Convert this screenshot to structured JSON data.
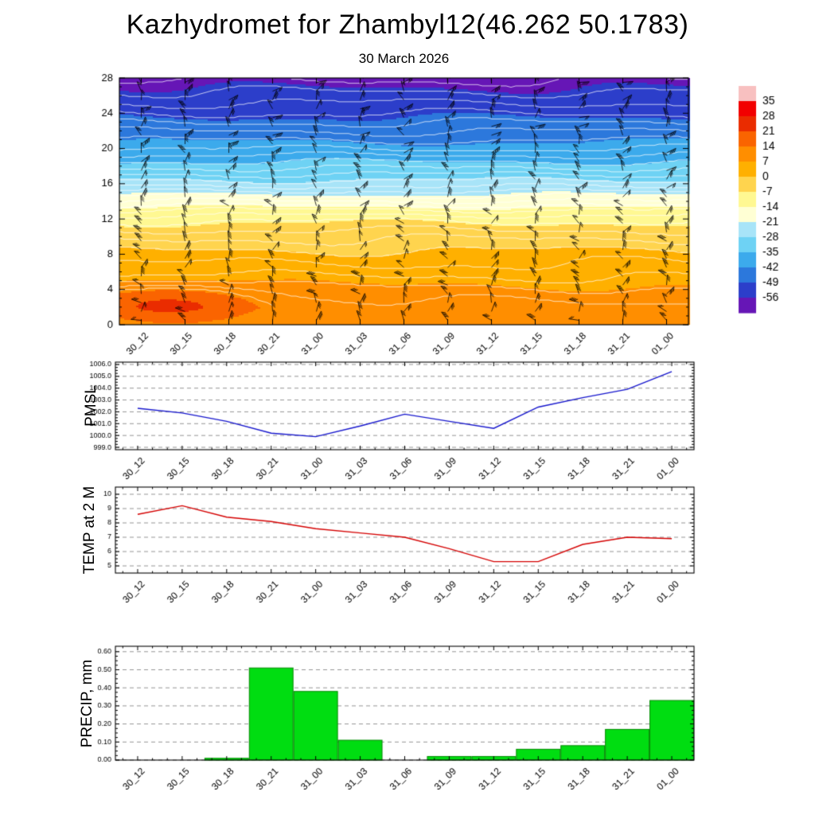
{
  "page": {
    "title": "Kazhydromet for Zhambyl12(46.262 50.1783)",
    "subtitle": "30 March 2026"
  },
  "time_labels": [
    "30_12",
    "30_15",
    "30_18",
    "30_21",
    "31_00",
    "31_03",
    "31_06",
    "31_09",
    "31_12",
    "31_15",
    "31_18",
    "31_21",
    "01_00"
  ],
  "chart_data": [
    {
      "id": "temperature-height-cross-section",
      "type": "heatmap",
      "description": "Temperature (shaded, deg C) height-time cross-section with wind barbs",
      "ylim": [
        0,
        28
      ],
      "yticks": [
        0,
        4,
        8,
        12,
        16,
        20,
        24,
        28
      ],
      "wind_barbs": true,
      "colorbar_ticks": [
        35,
        28,
        21,
        14,
        7,
        0,
        -7,
        -14,
        -21,
        -28,
        -35,
        -42,
        -49,
        -56
      ],
      "colorbar_colors": [
        "#f8c0c0",
        "#f20000",
        "#ea2c00",
        "#fa6400",
        "#ff8e00",
        "#ffb000",
        "#ffd44e",
        "#fff892",
        "#ffffd4",
        "#a8e4f8",
        "#6ed2f4",
        "#3caaec",
        "#2c78dc",
        "#2c3eca",
        "#6616b6"
      ],
      "profile_heights": [
        0,
        2,
        4,
        6,
        8,
        10,
        12,
        13,
        14,
        16,
        18,
        20,
        22,
        24,
        26,
        28
      ],
      "profile_temps_c": [
        9,
        11,
        8,
        4,
        1,
        -3,
        -8,
        -12,
        -17,
        -26,
        -33,
        -40,
        -45,
        -50,
        -54,
        -58
      ],
      "warm_patch": {
        "time_frac": 0.1,
        "height": 2.5,
        "amplitude_c": 12
      }
    },
    {
      "id": "pmsl",
      "type": "line",
      "ylabel": "PMSL",
      "line_color": "#1515cc",
      "ylim": [
        998.8,
        1006.2
      ],
      "yticks": [
        1006,
        1005,
        1004,
        1003,
        1002,
        1001,
        1000,
        999
      ],
      "tick_decimals": 1,
      "values": [
        1002.3,
        1001.9,
        1001.2,
        1000.2,
        999.9,
        1000.8,
        1001.8,
        1001.2,
        1000.6,
        1002.4,
        1003.2,
        1003.9,
        1005.4
      ]
    },
    {
      "id": "temp-2m",
      "type": "line",
      "ylabel": "TEMP at 2 M",
      "line_color": "#d40000",
      "ylim": [
        4.5,
        10.5
      ],
      "yticks": [
        10,
        9,
        8,
        7,
        6,
        5
      ],
      "tick_decimals": 0,
      "values": [
        8.6,
        9.2,
        8.4,
        8.1,
        7.6,
        7.3,
        7.0,
        6.2,
        5.3,
        5.3,
        6.5,
        7.0,
        6.9
      ]
    },
    {
      "id": "precip",
      "type": "bar",
      "ylabel": "PRECIP, mm",
      "bar_color": "#00dd11",
      "bar_edge": "#008800",
      "ylim": [
        0,
        0.63
      ],
      "yticks": [
        0.6,
        0.5,
        0.4,
        0.3,
        0.2,
        0.1,
        0.0
      ],
      "tick_decimals": 2,
      "values": [
        0,
        0,
        0.01,
        0.51,
        0.38,
        0.11,
        0,
        0.02,
        0.02,
        0.06,
        0.08,
        0.17,
        0.33
      ]
    }
  ]
}
